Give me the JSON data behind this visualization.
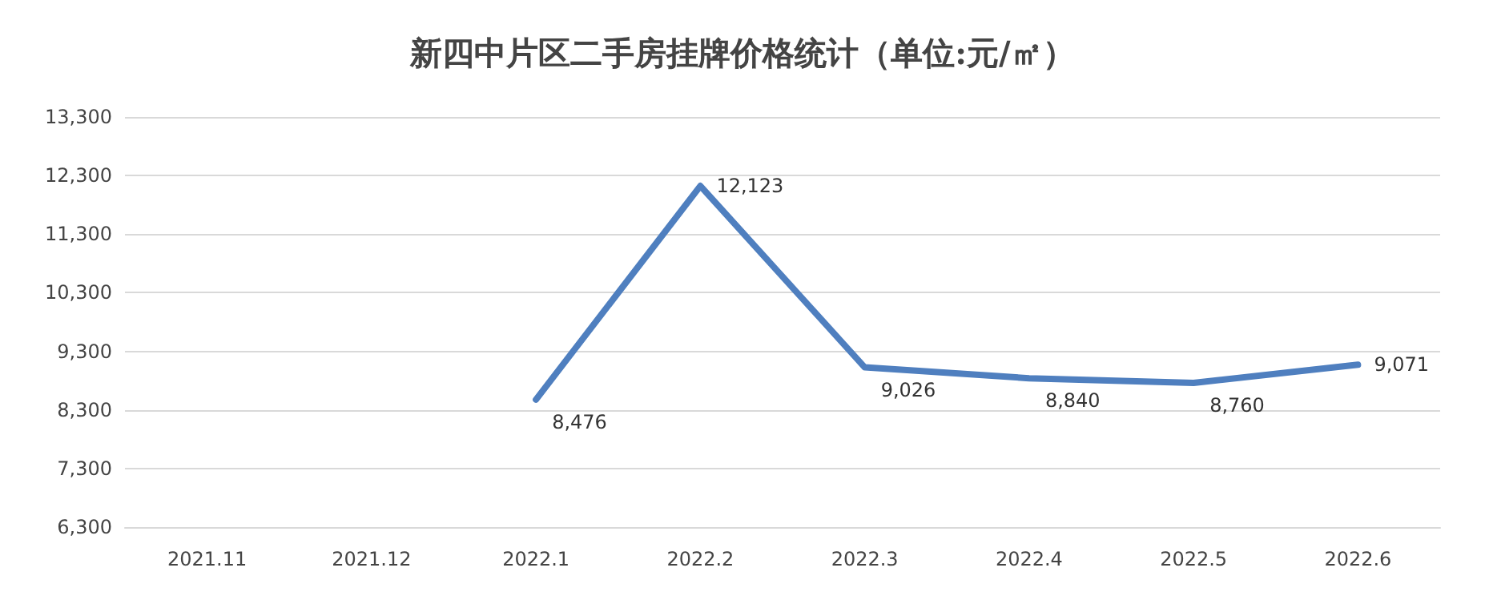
{
  "chart_data": {
    "type": "line",
    "title": "新四中片区二手房挂牌价格统计（单位:元/㎡）",
    "categories": [
      "2021.11",
      "2021.12",
      "2022.1",
      "2022.2",
      "2022.3",
      "2022.4",
      "2022.5",
      "2022.6"
    ],
    "values": [
      null,
      null,
      8476,
      12123,
      9026,
      8840,
      8760,
      9071
    ],
    "value_labels": [
      null,
      null,
      "8,476",
      "12,123",
      "9,026",
      "8,840",
      "8,760",
      "9,071"
    ],
    "color": "#4f7fbf",
    "ylim": [
      6300,
      13300
    ],
    "yticks": [
      {
        "value": 6300,
        "label": "6,300"
      },
      {
        "value": 7300,
        "label": "7,300"
      },
      {
        "value": 8300,
        "label": "8,300"
      },
      {
        "value": 9300,
        "label": "9,300"
      },
      {
        "value": 10300,
        "label": "10,300"
      },
      {
        "value": 11300,
        "label": "11,300"
      },
      {
        "value": 12300,
        "label": "12,300"
      },
      {
        "value": 13300,
        "label": "13,300"
      }
    ],
    "grid": "y",
    "marker": "none",
    "line_style": "solid"
  }
}
